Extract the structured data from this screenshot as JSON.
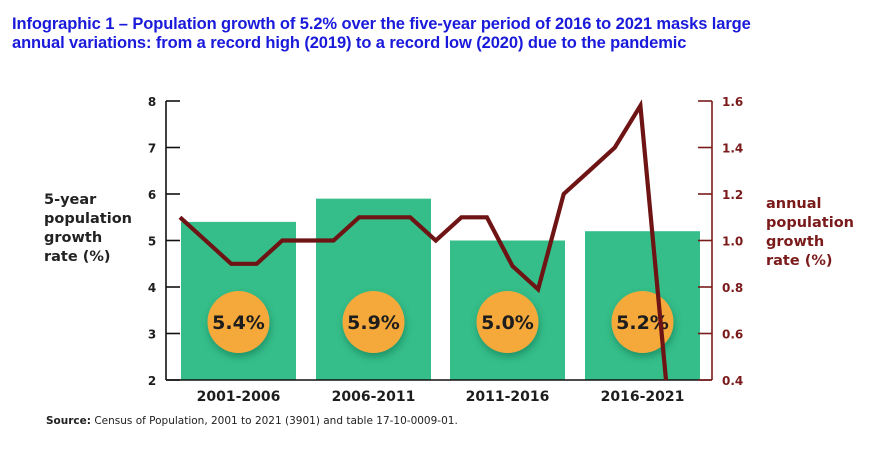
{
  "title": {
    "line1": "Infographic 1 –  Population growth of 5.2% over the five-year period of 2016 to 2021 masks large",
    "line2": "annual variations: from a record high (2019) to a record low (2020) due to the pandemic"
  },
  "left_axis_label": [
    "5-year",
    "population",
    "growth",
    "rate (%)"
  ],
  "right_axis_label": [
    "annual",
    "population",
    "growth",
    "rate (%)"
  ],
  "source": {
    "label": "Source:",
    "text": " Census of Population, 2001 to 2021 (3901) and table 17-10-0009-01."
  },
  "colors": {
    "bar": "#35be8a",
    "badge": "#f5a93b",
    "line": "#6e1414",
    "right_axis": "#7a1a1a",
    "left_axis": "#111111",
    "title": "#1a1adb"
  },
  "chart_data": {
    "type": "bar+line",
    "title": "Population growth of 5.2% over the five-year period of 2016 to 2021 masks large annual variations: from a record high (2019) to a record low (2020) due to the pandemic",
    "categories": [
      "2001-2006",
      "2006-2011",
      "2011-2016",
      "2016-2021"
    ],
    "bars": {
      "name": "5-year population growth rate (%)",
      "values": [
        5.4,
        5.9,
        5.0,
        5.2
      ],
      "labels": [
        "5.4%",
        "5.9%",
        "5.0%",
        "5.2%"
      ],
      "axis": "left"
    },
    "line": {
      "name": "annual population growth rate (%)",
      "years": [
        2001,
        2002,
        2003,
        2004,
        2005,
        2006,
        2007,
        2008,
        2009,
        2010,
        2011,
        2012,
        2013,
        2014,
        2015,
        2016,
        2017,
        2018,
        2019,
        2020
      ],
      "values": [
        1.1,
        1.0,
        0.9,
        0.9,
        1.0,
        1.0,
        1.0,
        1.1,
        1.1,
        1.1,
        1.0,
        1.1,
        1.1,
        0.89,
        0.79,
        1.2,
        1.3,
        1.4,
        1.58,
        0.4
      ],
      "axis": "right"
    },
    "left_axis": {
      "label": "5-year population growth rate (%)",
      "ylim": [
        2,
        8
      ],
      "ticks": [
        2,
        3,
        4,
        5,
        6,
        7,
        8
      ],
      "tick_labels": [
        "2",
        "3",
        "4",
        "5",
        "6",
        "7",
        "8"
      ]
    },
    "right_axis": {
      "label": "annual population growth rate (%)",
      "ylim": [
        0.4,
        1.6
      ],
      "ticks": [
        0.4,
        0.6,
        0.8,
        1.0,
        1.2,
        1.4,
        1.6
      ],
      "tick_labels": [
        "0.4",
        "0.6",
        "0.8",
        "1.0",
        "1.2",
        "1.4",
        "1.6"
      ]
    },
    "grid": false,
    "legend": "none"
  }
}
